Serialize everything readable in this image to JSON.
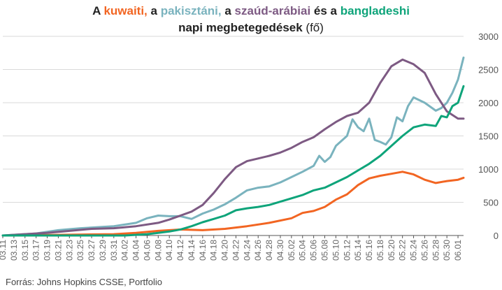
{
  "title": {
    "p1": "A ",
    "kuwait": "kuwaiti,",
    "p2": " a ",
    "pakistan": "pakisztáni,",
    "p3": " a ",
    "saudi": "szaúd-arábiai",
    "p4": " és a ",
    "bangladesh": "bangladeshi",
    "line2_bold": "napi megbetegedések",
    "line2_unit": " (fő)"
  },
  "source": "Forrás: Johns Hopkins CSSE, Portfolio",
  "colors": {
    "kuwait": "#f26522",
    "pakistan": "#7ab3be",
    "saudi": "#7d5a83",
    "bangladesh": "#0ea47a",
    "grid": "#d9d9d9",
    "axis": "#555555"
  },
  "chart_data": {
    "type": "line",
    "x_labels": [
      "03.11",
      "03.13",
      "03.15",
      "03.17",
      "03.19",
      "03.21",
      "03.23",
      "03.25",
      "03.27",
      "03.29",
      "03.31",
      "04.02",
      "04.04",
      "04.06",
      "04.08",
      "04.10",
      "04.12",
      "04.14",
      "04.16",
      "04.18",
      "04.20",
      "04.22",
      "04.24",
      "04.26",
      "04.28",
      "04.30",
      "05.02",
      "05.04",
      "05.06",
      "05.08",
      "05.10",
      "05.12",
      "05.14",
      "05.16",
      "05.18",
      "05.20",
      "05.22",
      "05.24",
      "05.26",
      "05.28",
      "05.30",
      "06.01"
    ],
    "ylim": [
      0,
      3000
    ],
    "y_ticks": [
      0,
      500,
      1000,
      1500,
      2000,
      2500,
      3000
    ],
    "y_axis_side": "right",
    "grid": true,
    "series": [
      {
        "name": "kuwaiti",
        "color_key": "kuwait",
        "values": [
          {
            "x": "03.11",
            "y": 0
          },
          {
            "x": "03.21",
            "y": 10
          },
          {
            "x": "03.31",
            "y": 20
          },
          {
            "x": "04.04",
            "y": 40
          },
          {
            "x": "04.08",
            "y": 70
          },
          {
            "x": "04.12",
            "y": 90
          },
          {
            "x": "04.16",
            "y": 80
          },
          {
            "x": "04.20",
            "y": 100
          },
          {
            "x": "04.24",
            "y": 140
          },
          {
            "x": "04.28",
            "y": 190
          },
          {
            "x": "05.02",
            "y": 260
          },
          {
            "x": "05.04",
            "y": 340
          },
          {
            "x": "05.06",
            "y": 370
          },
          {
            "x": "05.08",
            "y": 430
          },
          {
            "x": "05.10",
            "y": 540
          },
          {
            "x": "05.12",
            "y": 620
          },
          {
            "x": "05.14",
            "y": 760
          },
          {
            "x": "05.16",
            "y": 860
          },
          {
            "x": "05.18",
            "y": 900
          },
          {
            "x": "05.20",
            "y": 930
          },
          {
            "x": "05.22",
            "y": 960
          },
          {
            "x": "05.24",
            "y": 920
          },
          {
            "x": "05.26",
            "y": 840
          },
          {
            "x": "05.28",
            "y": 790
          },
          {
            "x": "05.30",
            "y": 820
          },
          {
            "x": "06.01",
            "y": 840
          },
          {
            "x": "06.02",
            "y": 870
          }
        ]
      },
      {
        "name": "pakisztáni",
        "color_key": "pakistan",
        "values": [
          {
            "x": "03.11",
            "y": 0
          },
          {
            "x": "03.17",
            "y": 30
          },
          {
            "x": "03.21",
            "y": 80
          },
          {
            "x": "03.25",
            "y": 110
          },
          {
            "x": "03.31",
            "y": 140
          },
          {
            "x": "04.04",
            "y": 190
          },
          {
            "x": "04.06",
            "y": 260
          },
          {
            "x": "04.08",
            "y": 300
          },
          {
            "x": "04.10",
            "y": 290
          },
          {
            "x": "04.12",
            "y": 290
          },
          {
            "x": "04.14",
            "y": 250
          },
          {
            "x": "04.16",
            "y": 330
          },
          {
            "x": "04.18",
            "y": 390
          },
          {
            "x": "04.20",
            "y": 470
          },
          {
            "x": "04.22",
            "y": 570
          },
          {
            "x": "04.24",
            "y": 680
          },
          {
            "x": "04.26",
            "y": 720
          },
          {
            "x": "04.28",
            "y": 740
          },
          {
            "x": "04.30",
            "y": 800
          },
          {
            "x": "05.02",
            "y": 880
          },
          {
            "x": "05.04",
            "y": 960
          },
          {
            "x": "05.06",
            "y": 1050
          },
          {
            "x": "05.07",
            "y": 1200
          },
          {
            "x": "05.08",
            "y": 1110
          },
          {
            "x": "05.09",
            "y": 1180
          },
          {
            "x": "05.10",
            "y": 1350
          },
          {
            "x": "05.12",
            "y": 1500
          },
          {
            "x": "05.13",
            "y": 1750
          },
          {
            "x": "05.14",
            "y": 1630
          },
          {
            "x": "05.15",
            "y": 1570
          },
          {
            "x": "05.16",
            "y": 1760
          },
          {
            "x": "05.17",
            "y": 1440
          },
          {
            "x": "05.18",
            "y": 1410
          },
          {
            "x": "05.19",
            "y": 1370
          },
          {
            "x": "05.20",
            "y": 1480
          },
          {
            "x": "05.21",
            "y": 1780
          },
          {
            "x": "05.22",
            "y": 1720
          },
          {
            "x": "05.23",
            "y": 1950
          },
          {
            "x": "05.24",
            "y": 2080
          },
          {
            "x": "05.26",
            "y": 2000
          },
          {
            "x": "05.28",
            "y": 1880
          },
          {
            "x": "05.29",
            "y": 1920
          },
          {
            "x": "05.30",
            "y": 2000
          },
          {
            "x": "05.31",
            "y": 2150
          },
          {
            "x": "06.01",
            "y": 2350
          },
          {
            "x": "06.02",
            "y": 2680
          }
        ]
      },
      {
        "name": "szaúd-arábiai",
        "color_key": "saudi",
        "values": [
          {
            "x": "03.11",
            "y": 0
          },
          {
            "x": "03.15",
            "y": 20
          },
          {
            "x": "03.19",
            "y": 40
          },
          {
            "x": "03.23",
            "y": 70
          },
          {
            "x": "03.27",
            "y": 100
          },
          {
            "x": "03.31",
            "y": 110
          },
          {
            "x": "04.04",
            "y": 140
          },
          {
            "x": "04.08",
            "y": 190
          },
          {
            "x": "04.10",
            "y": 240
          },
          {
            "x": "04.12",
            "y": 300
          },
          {
            "x": "04.14",
            "y": 360
          },
          {
            "x": "04.16",
            "y": 460
          },
          {
            "x": "04.18",
            "y": 640
          },
          {
            "x": "04.20",
            "y": 850
          },
          {
            "x": "04.22",
            "y": 1030
          },
          {
            "x": "04.24",
            "y": 1120
          },
          {
            "x": "04.26",
            "y": 1160
          },
          {
            "x": "04.28",
            "y": 1200
          },
          {
            "x": "04.30",
            "y": 1250
          },
          {
            "x": "05.02",
            "y": 1320
          },
          {
            "x": "05.04",
            "y": 1410
          },
          {
            "x": "05.06",
            "y": 1480
          },
          {
            "x": "05.08",
            "y": 1600
          },
          {
            "x": "05.10",
            "y": 1710
          },
          {
            "x": "05.12",
            "y": 1800
          },
          {
            "x": "05.14",
            "y": 1850
          },
          {
            "x": "05.16",
            "y": 2000
          },
          {
            "x": "05.18",
            "y": 2300
          },
          {
            "x": "05.20",
            "y": 2550
          },
          {
            "x": "05.22",
            "y": 2650
          },
          {
            "x": "05.24",
            "y": 2580
          },
          {
            "x": "05.26",
            "y": 2450
          },
          {
            "x": "05.28",
            "y": 2130
          },
          {
            "x": "05.30",
            "y": 1870
          },
          {
            "x": "06.01",
            "y": 1760
          },
          {
            "x": "06.02",
            "y": 1760
          }
        ]
      },
      {
        "name": "bangladeshi",
        "color_key": "bangladesh",
        "values": [
          {
            "x": "03.11",
            "y": 0
          },
          {
            "x": "04.02",
            "y": 0
          },
          {
            "x": "04.06",
            "y": 20
          },
          {
            "x": "04.08",
            "y": 40
          },
          {
            "x": "04.10",
            "y": 60
          },
          {
            "x": "04.12",
            "y": 90
          },
          {
            "x": "04.14",
            "y": 140
          },
          {
            "x": "04.16",
            "y": 200
          },
          {
            "x": "04.18",
            "y": 250
          },
          {
            "x": "04.20",
            "y": 300
          },
          {
            "x": "04.22",
            "y": 380
          },
          {
            "x": "04.24",
            "y": 410
          },
          {
            "x": "04.26",
            "y": 430
          },
          {
            "x": "04.28",
            "y": 460
          },
          {
            "x": "04.30",
            "y": 510
          },
          {
            "x": "05.02",
            "y": 560
          },
          {
            "x": "05.04",
            "y": 610
          },
          {
            "x": "05.06",
            "y": 680
          },
          {
            "x": "05.08",
            "y": 720
          },
          {
            "x": "05.10",
            "y": 800
          },
          {
            "x": "05.12",
            "y": 880
          },
          {
            "x": "05.14",
            "y": 980
          },
          {
            "x": "05.16",
            "y": 1080
          },
          {
            "x": "05.18",
            "y": 1200
          },
          {
            "x": "05.20",
            "y": 1350
          },
          {
            "x": "05.22",
            "y": 1500
          },
          {
            "x": "05.24",
            "y": 1630
          },
          {
            "x": "05.26",
            "y": 1670
          },
          {
            "x": "05.28",
            "y": 1650
          },
          {
            "x": "05.29",
            "y": 1800
          },
          {
            "x": "05.30",
            "y": 1780
          },
          {
            "x": "05.31",
            "y": 1950
          },
          {
            "x": "06.01",
            "y": 2000
          },
          {
            "x": "06.02",
            "y": 2250
          }
        ]
      }
    ]
  }
}
